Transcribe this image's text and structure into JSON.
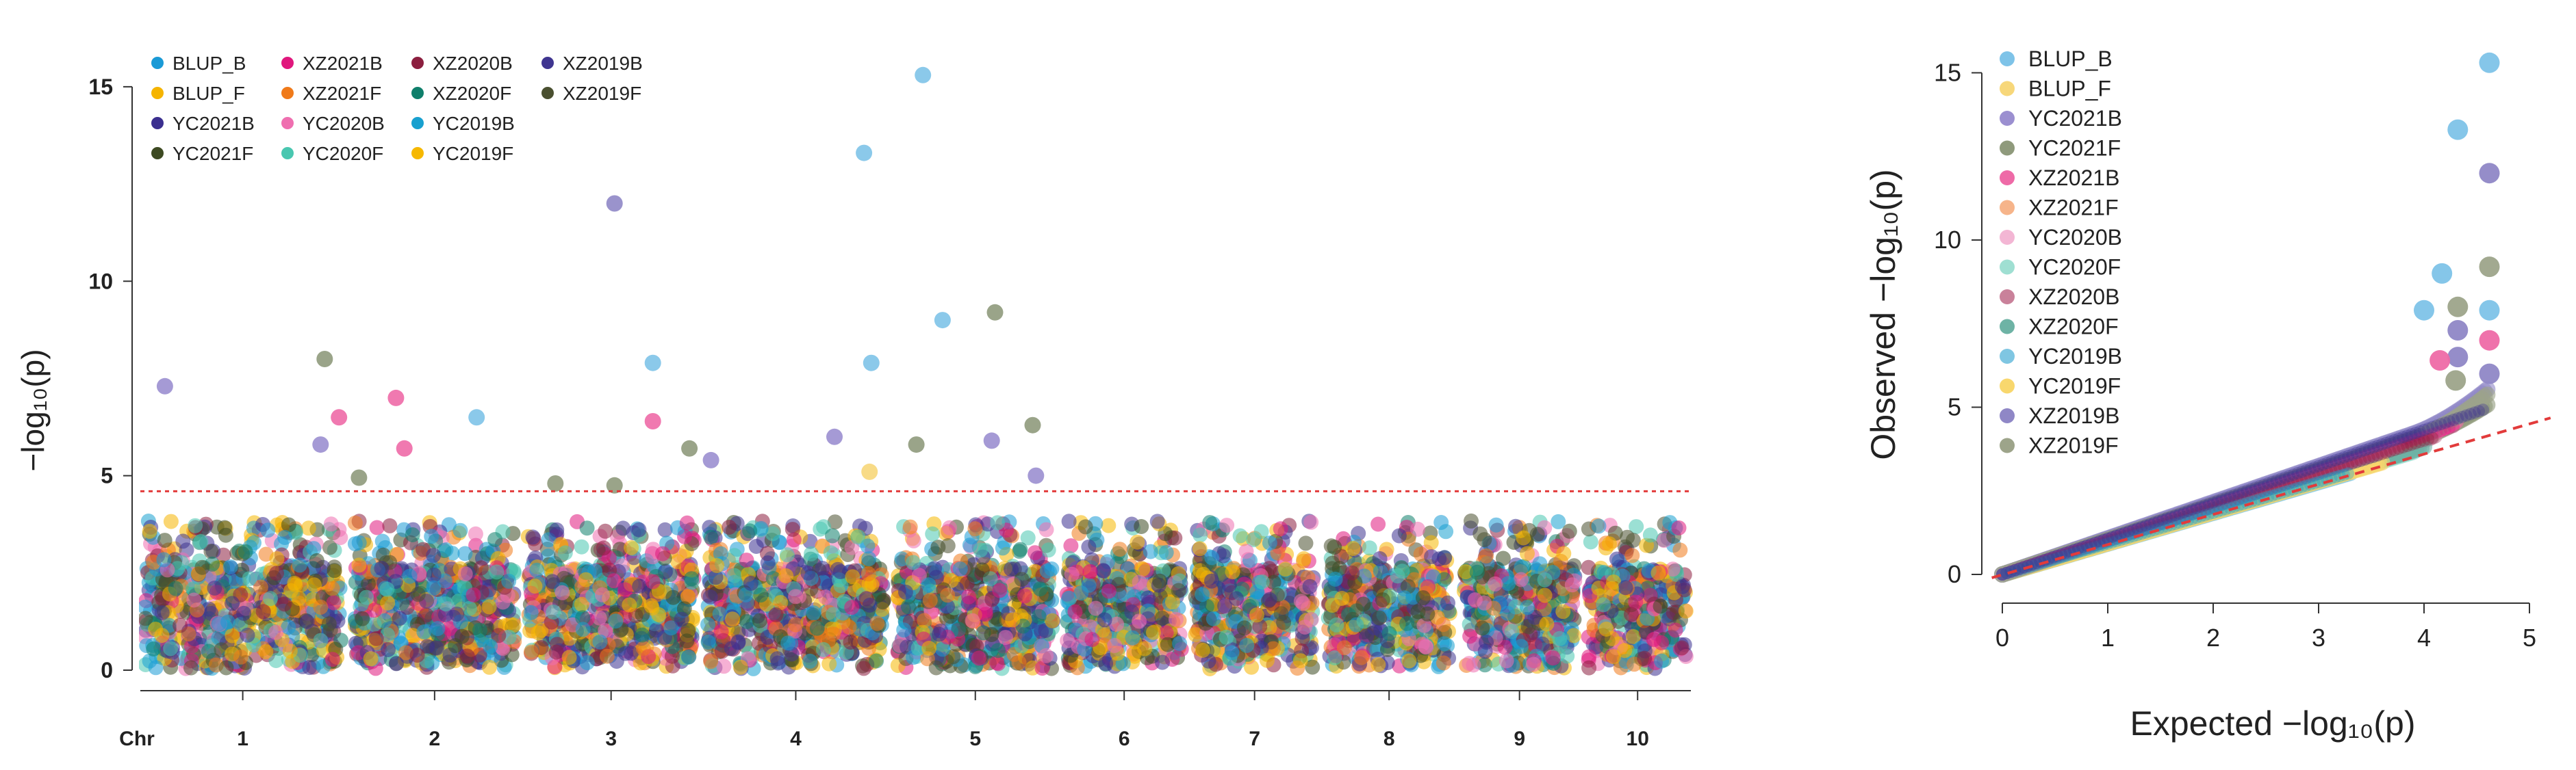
{
  "series": [
    {
      "name": "BLUP_B",
      "color": "#1a9ad6",
      "qq_color": "#7ec3e8"
    },
    {
      "name": "BLUP_F",
      "color": "#f5b400",
      "qq_color": "#f7d77a"
    },
    {
      "name": "YC2021B",
      "color": "#3b2f8f",
      "qq_color": "#9b8fd0"
    },
    {
      "name": "YC2021F",
      "color": "#3d4a22",
      "qq_color": "#8f9a7c"
    },
    {
      "name": "XZ2021B",
      "color": "#e0177d",
      "qq_color": "#ee6aa7"
    },
    {
      "name": "XZ2021F",
      "color": "#f07a1a",
      "qq_color": "#f6b48a"
    },
    {
      "name": "YC2020B",
      "color": "#ef6fb0",
      "qq_color": "#f3b6d4"
    },
    {
      "name": "YC2020F",
      "color": "#49c7b0",
      "qq_color": "#9fdfd2"
    },
    {
      "name": "XZ2020B",
      "color": "#8c1f3f",
      "qq_color": "#c9819a"
    },
    {
      "name": "XZ2020F",
      "color": "#0f7f6b",
      "qq_color": "#6eb3a5"
    },
    {
      "name": "YC2019B",
      "color": "#18a0cf",
      "qq_color": "#7fc6e2"
    },
    {
      "name": "YC2019F",
      "color": "#f6b800",
      "qq_color": "#f8d76d"
    },
    {
      "name": "XZ2019B",
      "color": "#3f3590",
      "qq_color": "#8f87c6"
    },
    {
      "name": "XZ2019F",
      "color": "#4a5030",
      "qq_color": "#9da48a"
    }
  ],
  "chart_data": [
    {
      "type": "scatter",
      "ylabel": "−log₁₀(p)",
      "xlabel": "",
      "chr_label": "Chr",
      "chromosomes": [
        "1",
        "2",
        "3",
        "4",
        "5",
        "6",
        "7",
        "8",
        "9",
        "10"
      ],
      "yticks": [
        "0",
        "5",
        "10",
        "15"
      ],
      "ylim": [
        0,
        16
      ],
      "threshold": 4.6,
      "legend": "top-left",
      "significant_points": [
        {
          "series": "YC2021B",
          "chr": "1",
          "pos": 0.12,
          "y": 7.3
        },
        {
          "series": "YC2021F",
          "chr": "1",
          "pos": 0.9,
          "y": 8.0
        },
        {
          "series": "XZ2021B",
          "chr": "1",
          "pos": 0.97,
          "y": 6.5
        },
        {
          "series": "YC2021B",
          "chr": "1",
          "pos": 0.88,
          "y": 5.8
        },
        {
          "series": "YC2021F",
          "chr": "2",
          "pos": 0.05,
          "y": 4.95
        },
        {
          "series": "XZ2021B",
          "chr": "2",
          "pos": 0.27,
          "y": 7.0
        },
        {
          "series": "XZ2021B",
          "chr": "2",
          "pos": 0.32,
          "y": 5.7
        },
        {
          "series": "BLUP_B",
          "chr": "2",
          "pos": 0.75,
          "y": 6.5
        },
        {
          "series": "YC2021F",
          "chr": "3",
          "pos": 0.18,
          "y": 4.8
        },
        {
          "series": "YC2021F",
          "chr": "3",
          "pos": 0.52,
          "y": 4.75
        },
        {
          "series": "XZ2019B",
          "chr": "3",
          "pos": 0.52,
          "y": 12.0
        },
        {
          "series": "BLUP_B",
          "chr": "3",
          "pos": 0.74,
          "y": 7.9
        },
        {
          "series": "XZ2021B",
          "chr": "3",
          "pos": 0.74,
          "y": 6.4
        },
        {
          "series": "YC2021F",
          "chr": "3",
          "pos": 0.95,
          "y": 5.7
        },
        {
          "series": "YC2021B",
          "chr": "4",
          "pos": 0.04,
          "y": 5.4
        },
        {
          "series": "YC2021B",
          "chr": "4",
          "pos": 0.71,
          "y": 6.0
        },
        {
          "series": "BLUP_B",
          "chr": "4",
          "pos": 0.87,
          "y": 13.3
        },
        {
          "series": "BLUP_B",
          "chr": "4",
          "pos": 0.91,
          "y": 7.9
        },
        {
          "series": "BLUP_F",
          "chr": "4",
          "pos": 0.9,
          "y": 5.1
        },
        {
          "series": "BLUP_B",
          "chr": "5",
          "pos": 0.18,
          "y": 15.3
        },
        {
          "series": "YC2021F",
          "chr": "5",
          "pos": 0.14,
          "y": 5.8
        },
        {
          "series": "BLUP_B",
          "chr": "5",
          "pos": 0.3,
          "y": 9.0
        },
        {
          "series": "YC2021F",
          "chr": "5",
          "pos": 0.62,
          "y": 9.2
        },
        {
          "series": "YC2021B",
          "chr": "5",
          "pos": 0.6,
          "y": 5.9
        },
        {
          "series": "YC2021F",
          "chr": "5",
          "pos": 0.85,
          "y": 6.3
        },
        {
          "series": "YC2021B",
          "chr": "5",
          "pos": 0.87,
          "y": 5.0
        }
      ]
    },
    {
      "type": "scatter",
      "xlabel": "Expected −log₁₀(p)",
      "ylabel": "Observed −log₁₀(p)",
      "xticks": [
        "0",
        "1",
        "2",
        "3",
        "4",
        "5"
      ],
      "yticks": [
        "0",
        "5",
        "10",
        "15"
      ],
      "xlim": [
        0,
        5
      ],
      "ylim": [
        0,
        15.5
      ],
      "reference_line": "y = x",
      "legend": "top-left",
      "tail_points": [
        {
          "series": "BLUP_B",
          "x": 4.62,
          "y": 15.3
        },
        {
          "series": "BLUP_B",
          "x": 4.32,
          "y": 13.3
        },
        {
          "series": "XZ2019B",
          "x": 4.62,
          "y": 12.0
        },
        {
          "series": "XZ2019F",
          "x": 4.62,
          "y": 9.2
        },
        {
          "series": "BLUP_B",
          "x": 4.17,
          "y": 9.0
        },
        {
          "series": "XZ2019F",
          "x": 4.32,
          "y": 8.0
        },
        {
          "series": "BLUP_B",
          "x": 4.62,
          "y": 7.9
        },
        {
          "series": "BLUP_B",
          "x": 4.0,
          "y": 7.9
        },
        {
          "series": "XZ2019B",
          "x": 4.32,
          "y": 7.3
        },
        {
          "series": "XZ2021B",
          "x": 4.62,
          "y": 7.0
        },
        {
          "series": "XZ2019B",
          "x": 4.32,
          "y": 6.5
        },
        {
          "series": "XZ2021B",
          "x": 4.15,
          "y": 6.4
        },
        {
          "series": "XZ2019B",
          "x": 4.62,
          "y": 6.0
        },
        {
          "series": "XZ2019F",
          "x": 4.3,
          "y": 5.8
        }
      ]
    }
  ]
}
